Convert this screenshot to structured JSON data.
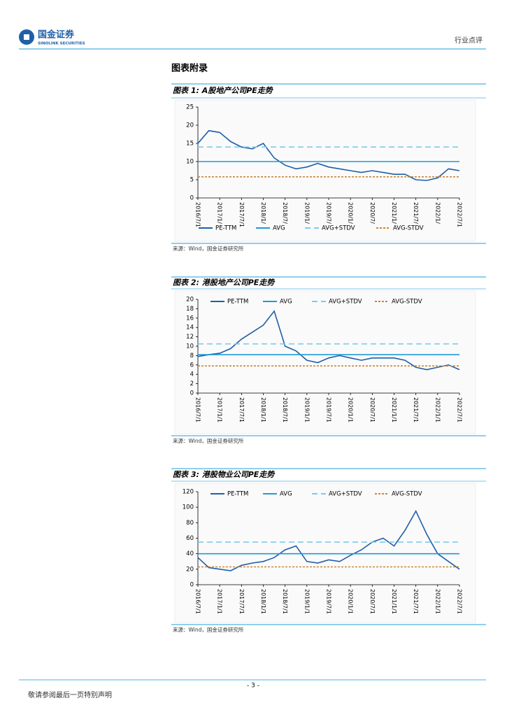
{
  "header": {
    "company": "国金证券",
    "company_en": "SINOLINK SECURITIES",
    "category": "行业点评"
  },
  "section_title": "图表附录",
  "chart_data": [
    {
      "type": "line",
      "title": "图表 1: A股地产公司PE走势",
      "source": "来源：Wind，国金证券研究所",
      "legend": "bottom",
      "categories": [
        "2016/7/1",
        null,
        "2017/1/",
        null,
        "2017/7/1",
        null,
        "2018/1/",
        null,
        "2018/7/",
        null,
        "2019/1/",
        null,
        "2019/7/",
        null,
        "2020/1/",
        null,
        "2020/7/",
        null,
        "2021/1/",
        null,
        "2021/7/",
        null,
        "2022/1/",
        null,
        "2022/7/1"
      ],
      "ylim": [
        0,
        25
      ],
      "yticks": [
        0,
        5,
        10,
        15,
        20,
        25
      ],
      "series": [
        {
          "name": "PE-TTM",
          "color": "#1f5fa8",
          "values": [
            15,
            18.5,
            18,
            15.5,
            14,
            13.5,
            15,
            11,
            9,
            8,
            8.5,
            9.5,
            8.5,
            8,
            7.5,
            7,
            7.5,
            7,
            6.5,
            6.5,
            5,
            4.8,
            5.5,
            8,
            7.5
          ]
        },
        {
          "name": "AVG",
          "color": "#1f9ad6",
          "value": 10
        },
        {
          "name": "AVG+STDV",
          "color": "#7ccbee",
          "dash": "8,5",
          "value": 14
        },
        {
          "name": "AVG-STDV",
          "color": "#c8873a",
          "dash": "3,2",
          "value": 5.8
        }
      ]
    },
    {
      "type": "line",
      "title": "图表 2: 港股地产公司PE走势",
      "source": "来源：Wind，国金证券研究所",
      "legend": "top",
      "categories": [
        "2016/7/1",
        null,
        "2017/1/1",
        null,
        "2017/7/1",
        null,
        "2018/1/1",
        null,
        "2018/7/1",
        null,
        "2019/1/1",
        null,
        "2019/7/1",
        null,
        "2020/1/1",
        null,
        "2020/7/1",
        null,
        "2021/1/1",
        null,
        "2021/7/1",
        null,
        "2022/1/1",
        null,
        "2022/7/1"
      ],
      "ylim": [
        0,
        20
      ],
      "yticks": [
        0,
        2,
        4,
        6,
        8,
        10,
        12,
        14,
        16,
        18,
        20
      ],
      "series": [
        {
          "name": "PE-TTM",
          "color": "#1f5fa8",
          "values": [
            7.8,
            8.2,
            8.5,
            9.5,
            11.5,
            13,
            14.5,
            17.5,
            10,
            9,
            7,
            6.5,
            7.5,
            8,
            7.5,
            7,
            7.5,
            7.5,
            7.5,
            7,
            5.5,
            5,
            5.5,
            6,
            5
          ]
        },
        {
          "name": "AVG",
          "color": "#1f9ad6",
          "value": 8.2
        },
        {
          "name": "AVG+STDV",
          "color": "#7ccbee",
          "dash": "8,5",
          "value": 10.5
        },
        {
          "name": "AVG-STDV",
          "color": "#c8873a",
          "dash": "3,2",
          "value": 5.8
        }
      ]
    },
    {
      "type": "line",
      "title": "图表 3: 港股物业公司PE走势",
      "source": "来源：Wind，国金证券研究所",
      "legend": "top",
      "categories": [
        "2016/7/1",
        null,
        "2017/1/1",
        null,
        "2017/7/1",
        null,
        "2018/1/1",
        null,
        "2018/7/1",
        null,
        "2019/1/1",
        null,
        "2019/7/1",
        null,
        "2020/1/1",
        null,
        "2020/7/1",
        null,
        "2021/1/1",
        null,
        "2021/7/1",
        null,
        "2022/1/1",
        null,
        "2022/7/1"
      ],
      "ylim": [
        0,
        120
      ],
      "yticks": [
        0,
        20,
        40,
        60,
        80,
        100,
        120
      ],
      "series": [
        {
          "name": "PE-TTM",
          "color": "#1f5fa8",
          "values": [
            35,
            22,
            20,
            18,
            25,
            28,
            30,
            35,
            45,
            50,
            30,
            28,
            32,
            30,
            38,
            45,
            55,
            60,
            50,
            70,
            95,
            65,
            40,
            30,
            20
          ]
        },
        {
          "name": "AVG",
          "color": "#1f9ad6",
          "value": 40
        },
        {
          "name": "AVG+STDV",
          "color": "#7ccbee",
          "dash": "8,5",
          "value": 55
        },
        {
          "name": "AVG-STDV",
          "color": "#c8873a",
          "dash": "3,2",
          "value": 23
        }
      ]
    }
  ],
  "footer": {
    "page": "- 3 -",
    "notice": "敬请参阅最后一页特别声明"
  }
}
